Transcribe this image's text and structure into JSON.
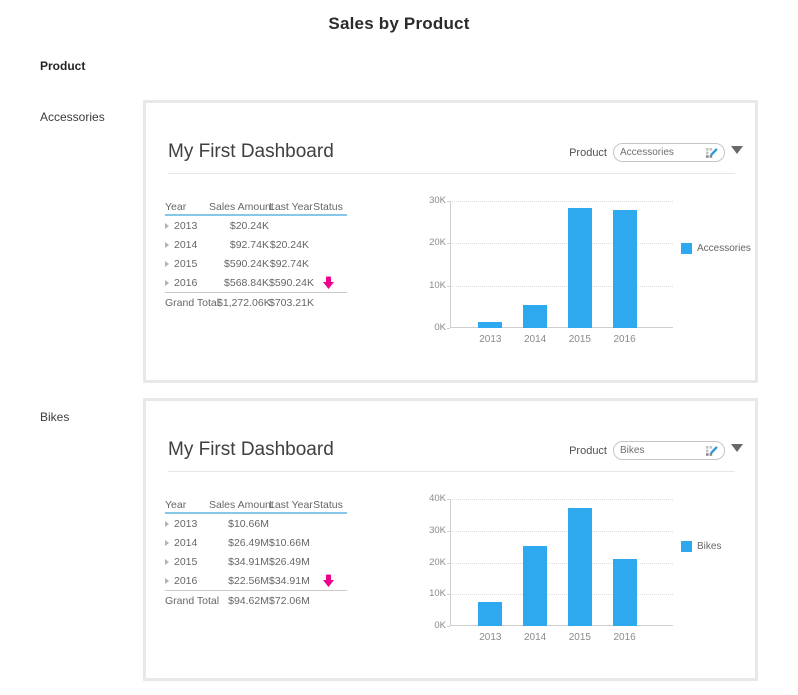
{
  "page": {
    "title": "Sales by Product"
  },
  "grid": {
    "column_header": "Product"
  },
  "colors": {
    "bar_blue": "#2EA9F0",
    "status_down_pink": "#EC008C",
    "table_header_underline": "#86C8E8",
    "panel_border": "#E8E8EB"
  },
  "panels": [
    {
      "row_label": "Accessories",
      "dashboard_title": "My First Dashboard",
      "slicer": {
        "label": "Product",
        "value": "Accessories",
        "icon": "clear-selections-eraser-icon",
        "caret": "dropdown-caret-icon"
      },
      "table": {
        "columns": [
          "Year",
          "Sales Amount",
          "Last Year",
          "Status"
        ],
        "rows": [
          {
            "year": "2013",
            "sales": "$20.24K",
            "last": "",
            "status": ""
          },
          {
            "year": "2014",
            "sales": "$92.74K",
            "last": "$20.24K",
            "status": ""
          },
          {
            "year": "2015",
            "sales": "$590.24K",
            "last": "$92.74K",
            "status": ""
          },
          {
            "year": "2016",
            "sales": "$568.84K",
            "last": "$590.24K",
            "status": "down-arrow"
          }
        ],
        "total": {
          "label": "Grand Total",
          "sales": "$1,272.06K",
          "last": "$703.21K"
        }
      }
    },
    {
      "row_label": "Bikes",
      "dashboard_title": "My First Dashboard",
      "slicer": {
        "label": "Product",
        "value": "Bikes",
        "icon": "clear-selections-eraser-icon",
        "caret": "dropdown-caret-icon"
      },
      "table": {
        "columns": [
          "Year",
          "Sales Amount",
          "Last Year",
          "Status"
        ],
        "rows": [
          {
            "year": "2013",
            "sales": "$10.66M",
            "last": "",
            "status": ""
          },
          {
            "year": "2014",
            "sales": "$26.49M",
            "last": "$10.66M",
            "status": ""
          },
          {
            "year": "2015",
            "sales": "$34.91M",
            "last": "$26.49M",
            "status": ""
          },
          {
            "year": "2016",
            "sales": "$22.56M",
            "last": "$34.91M",
            "status": "down-arrow"
          }
        ],
        "total": {
          "label": "Grand Total",
          "sales": "$94.62M",
          "last": "$72.06M"
        }
      }
    }
  ],
  "chart_data": [
    {
      "type": "bar",
      "title": "",
      "categories": [
        "2013",
        "2014",
        "2015",
        "2016"
      ],
      "series": [
        {
          "name": "Accessories",
          "color": "#2EA9F0",
          "values": [
            1300,
            5500,
            28300,
            27800
          ]
        }
      ],
      "ylim": [
        0,
        30000
      ],
      "yticks": [
        0,
        10000,
        20000,
        30000
      ],
      "ytick_labels": [
        "0K",
        "10K",
        "20K",
        "30K"
      ],
      "grid": "dotted-horizontal",
      "legend_position": "right"
    },
    {
      "type": "bar",
      "title": "",
      "categories": [
        "2013",
        "2014",
        "2015",
        "2016"
      ],
      "series": [
        {
          "name": "Bikes",
          "color": "#2EA9F0",
          "values": [
            7500,
            25200,
            37200,
            21200
          ]
        }
      ],
      "ylim": [
        0,
        40000
      ],
      "yticks": [
        0,
        10000,
        20000,
        30000,
        40000
      ],
      "ytick_labels": [
        "0K",
        "10K",
        "20K",
        "30K",
        "40K"
      ],
      "grid": "dotted-horizontal",
      "legend_position": "right"
    }
  ]
}
